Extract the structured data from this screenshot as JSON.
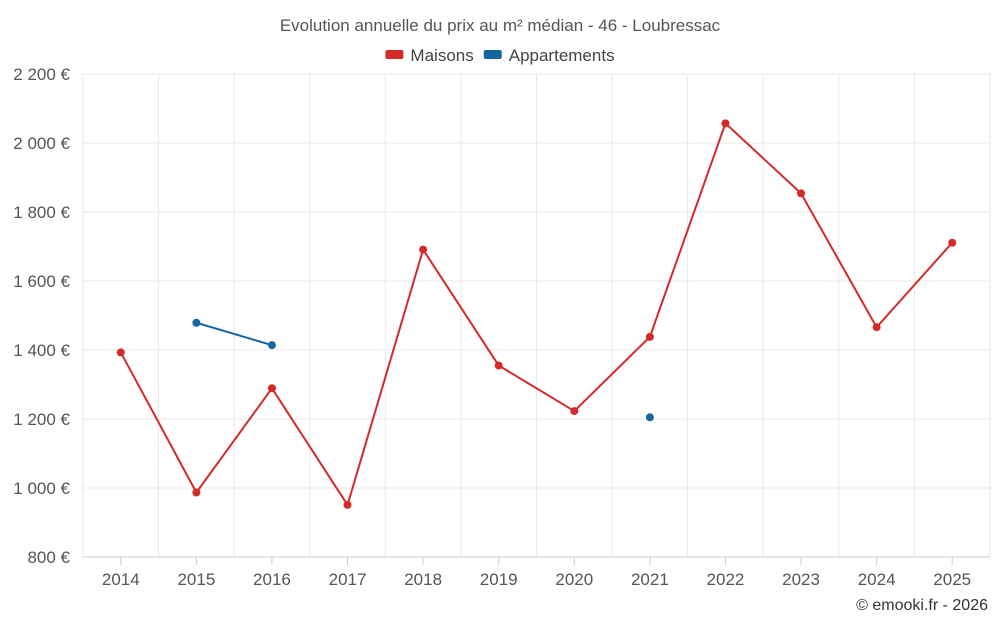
{
  "chart_data": {
    "type": "line",
    "title": "Evolution annuelle du prix au m² médian - 46 - Loubressac",
    "categories": [
      "2014",
      "2015",
      "2016",
      "2017",
      "2018",
      "2019",
      "2020",
      "2021",
      "2022",
      "2023",
      "2024",
      "2025"
    ],
    "series": [
      {
        "name": "Maisons",
        "color": "#d42a2a",
        "values": [
          1393,
          987,
          1289,
          951,
          1691,
          1355,
          1223,
          1438,
          2057,
          1854,
          1466,
          1711
        ]
      },
      {
        "name": "Appartements",
        "color": "#14679e",
        "values": [
          null,
          1479,
          1414,
          null,
          null,
          null,
          null,
          1205,
          null,
          null,
          null,
          null
        ]
      }
    ],
    "ylim": [
      800,
      2200
    ],
    "yticks": [
      800,
      1000,
      1200,
      1400,
      1600,
      1800,
      2000,
      2200
    ],
    "ytick_labels": [
      "800 €",
      "1 000 €",
      "1 200 €",
      "1 400 €",
      "1 600 €",
      "1 800 €",
      "2 000 €",
      "2 200 €"
    ],
    "xlabel": "",
    "ylabel": "",
    "grid": true,
    "legend_position": "top-center"
  },
  "credit": "© emooki.fr - 2026"
}
